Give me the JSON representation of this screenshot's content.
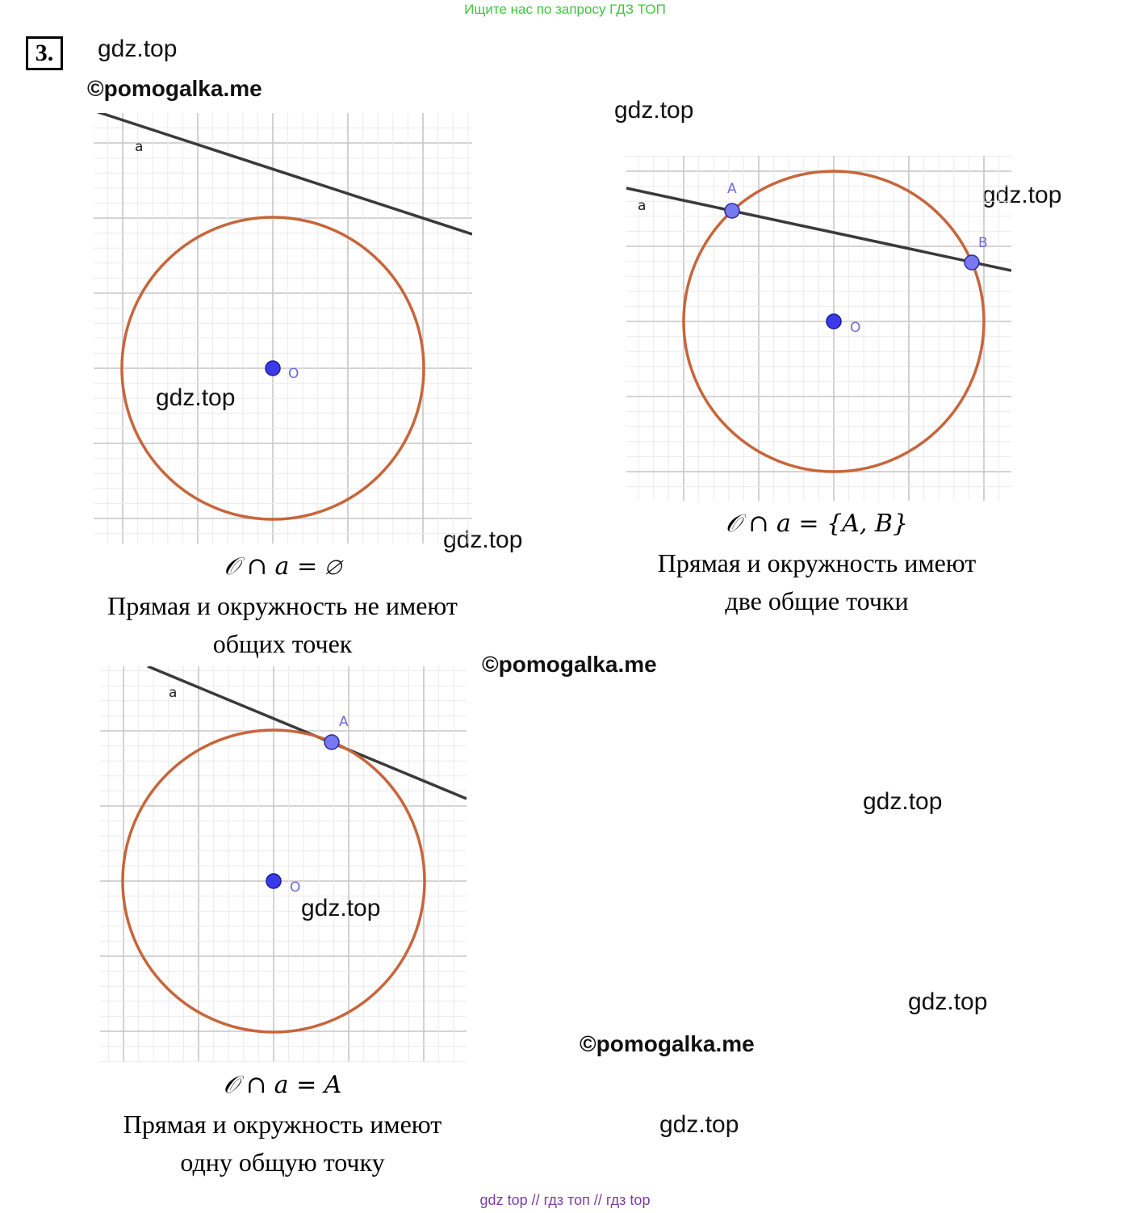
{
  "header": {
    "search_hint": "Ищите нас по запросу ГДЗ ТОП",
    "task_number": "3."
  },
  "watermarks": {
    "gdz": "gdz.top",
    "pomogalka": "©pomogalka.me"
  },
  "figures": [
    {
      "id": "no-common-points",
      "line_label": "a",
      "center_label": "O",
      "points": [],
      "formula": "𝒪 ∩ a = ∅",
      "caption_lines": [
        "Прямая и окружность не имеют",
        "общих точек"
      ]
    },
    {
      "id": "two-common-points",
      "line_label": "a",
      "center_label": "O",
      "points": [
        "A",
        "B"
      ],
      "formula": "𝒪 ∩ a = {A, B}",
      "caption_lines": [
        "Прямая и окружность имеют",
        "две общие точки"
      ]
    },
    {
      "id": "one-common-point",
      "line_label": "a",
      "center_label": "O",
      "points": [
        "A"
      ],
      "formula": "𝒪 ∩ a = A",
      "caption_lines": [
        "Прямая и окружность имеют",
        "одну общую точку"
      ]
    }
  ],
  "colors": {
    "circle": "#c8653a",
    "line": "#3a3a3a",
    "center_point": "#3a3ae8",
    "intersection_point": "#7878f0",
    "point_label": "#6a6ae0",
    "grid_major": "#c6c6c6",
    "grid_minor": "#ebebeb",
    "search_hint": "#3fc53f",
    "footer": "#7a3fa0"
  },
  "footer": {
    "text": "gdz top  //  гдз топ  //  гдз top"
  }
}
